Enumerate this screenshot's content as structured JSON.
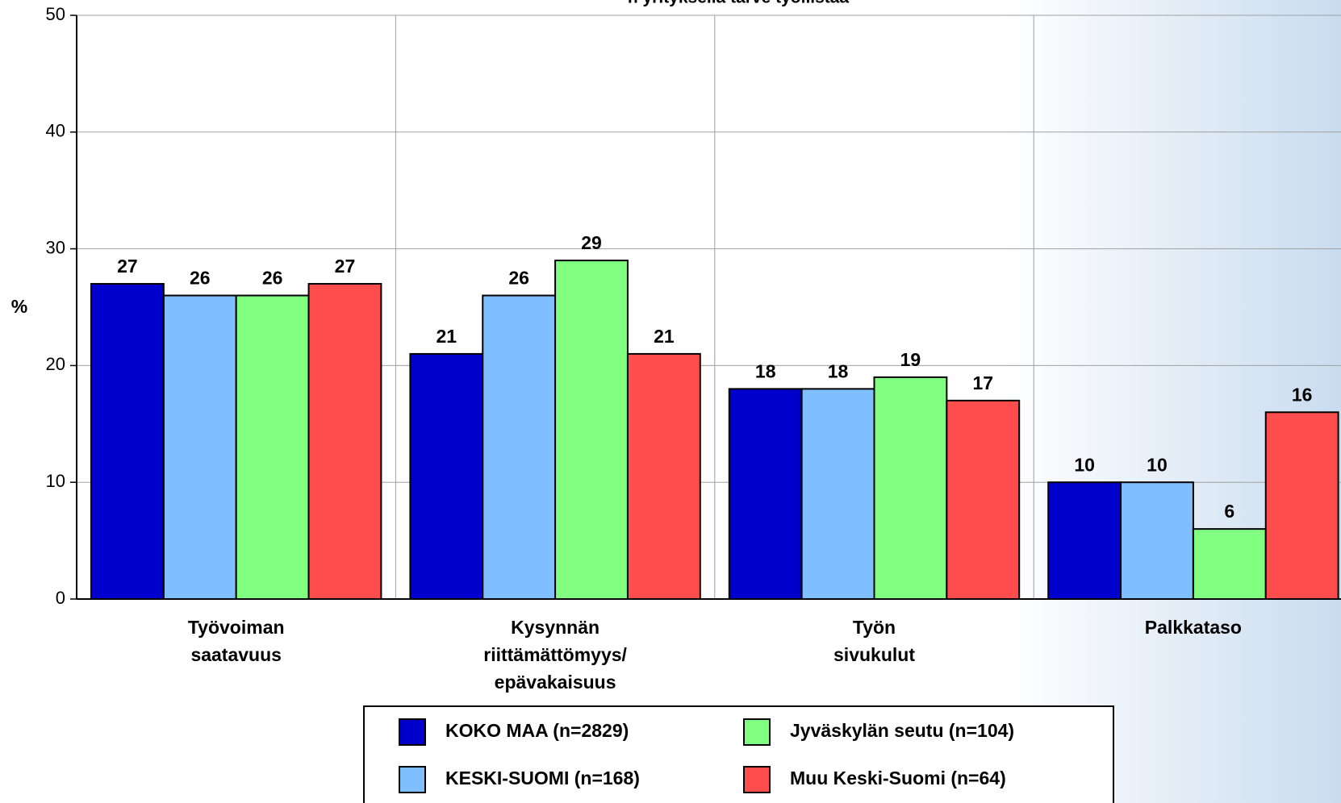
{
  "chart_data": {
    "type": "bar",
    "title": "n yrityksellä tarve työllistää",
    "y_label": "%",
    "categories": [
      "Työvoiman\nsaatavuus",
      "Kysynnän\nriittämättömyys/\nepävakaisuus",
      "Työn\nsivukulut",
      "Palkkataso"
    ],
    "series": [
      {
        "name": "KOKO MAA (n=2829)",
        "color": "#0000cc",
        "values": [
          27,
          21,
          18,
          10
        ]
      },
      {
        "name": "KESKI-SUOMI (n=168)",
        "color": "#80bfff",
        "values": [
          26,
          26,
          18,
          10
        ]
      },
      {
        "name": "Jyväskylän seutu (n=104)",
        "color": "#80ff80",
        "values": [
          26,
          29,
          19,
          6
        ]
      },
      {
        "name": "Muu Keski-Suomi (n=64)",
        "color": "#ff4d4d",
        "values": [
          27,
          21,
          17,
          16
        ]
      }
    ],
    "ylim": [
      0,
      50
    ],
    "yticks": [
      0,
      10,
      20,
      30,
      40,
      50
    ],
    "grid": true
  }
}
